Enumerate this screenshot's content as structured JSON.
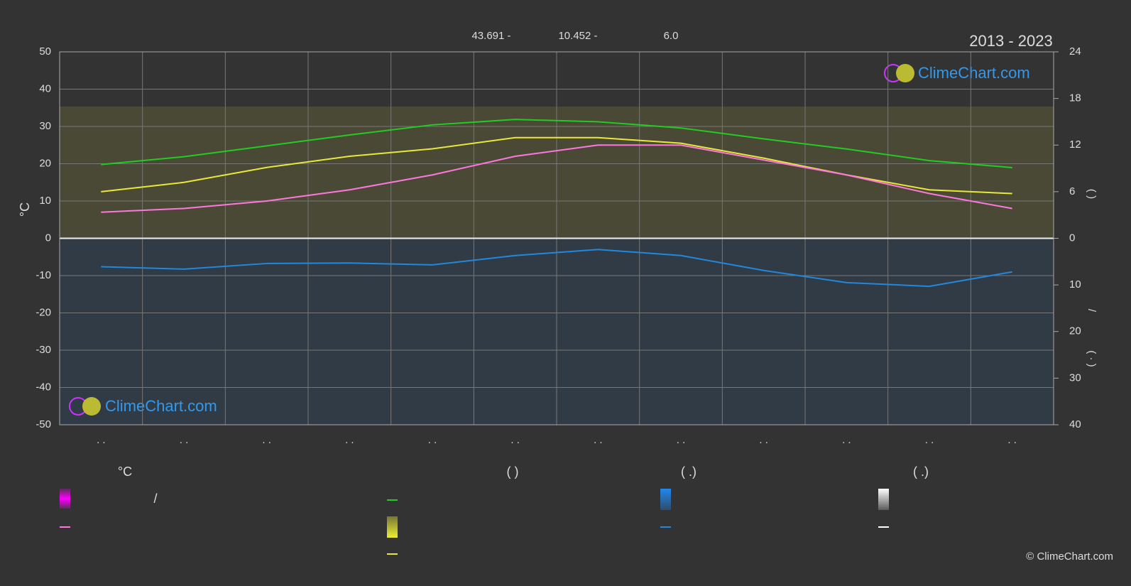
{
  "chart_data": {
    "type": "line",
    "title": "2013 - 2023",
    "header_values": [
      "43.691 -",
      "10.452 -",
      "6.0"
    ],
    "watermark": "ClimeChart.com",
    "ylabel": "°C",
    "y2label": "(      )",
    "y3label_top": "/",
    "y3label_bottom": "( · )",
    "categories": [
      ". .",
      ". .",
      ". .",
      ". .",
      ". .",
      ". .",
      ". .",
      ". .",
      ". .",
      ". .",
      ". .",
      ". ."
    ],
    "ylim": [
      -50,
      50
    ],
    "yticks": [
      50,
      40,
      30,
      20,
      10,
      0,
      -10,
      -20,
      -30,
      -40,
      -50
    ],
    "y2lim": [
      0,
      24
    ],
    "y2ticks": [
      24,
      18,
      12,
      6,
      0
    ],
    "y3lim": [
      0,
      40
    ],
    "y3ticks": [
      10,
      20,
      30,
      40
    ],
    "grid": true,
    "series": [
      {
        "color": "#22cc22",
        "axis": "y2",
        "values": [
          9.5,
          10.5,
          11.9,
          13.3,
          14.6,
          15.3,
          15.0,
          14.2,
          12.8,
          11.5,
          10.0,
          9.1
        ]
      },
      {
        "color": "#e8e83a",
        "axis": "y",
        "values": [
          12.5,
          15,
          19,
          22,
          24,
          27,
          27,
          25.5,
          21.5,
          17,
          13,
          12
        ]
      },
      {
        "color": "#ff77dd",
        "axis": "y",
        "values": [
          7,
          8,
          10,
          13,
          17,
          22,
          25,
          25,
          21,
          17,
          12,
          8
        ]
      },
      {
        "color": "#2288dd",
        "axis": "y3",
        "values": [
          6.1,
          6.6,
          5.4,
          5.3,
          5.7,
          3.7,
          2.4,
          3.7,
          6.9,
          9.5,
          10.3,
          7.2
        ]
      }
    ],
    "legend_headers": [
      "°C",
      "(          )",
      "(   .)",
      "(   .)"
    ],
    "legend_text": "/",
    "copyright": "© ClimeChart.com"
  }
}
